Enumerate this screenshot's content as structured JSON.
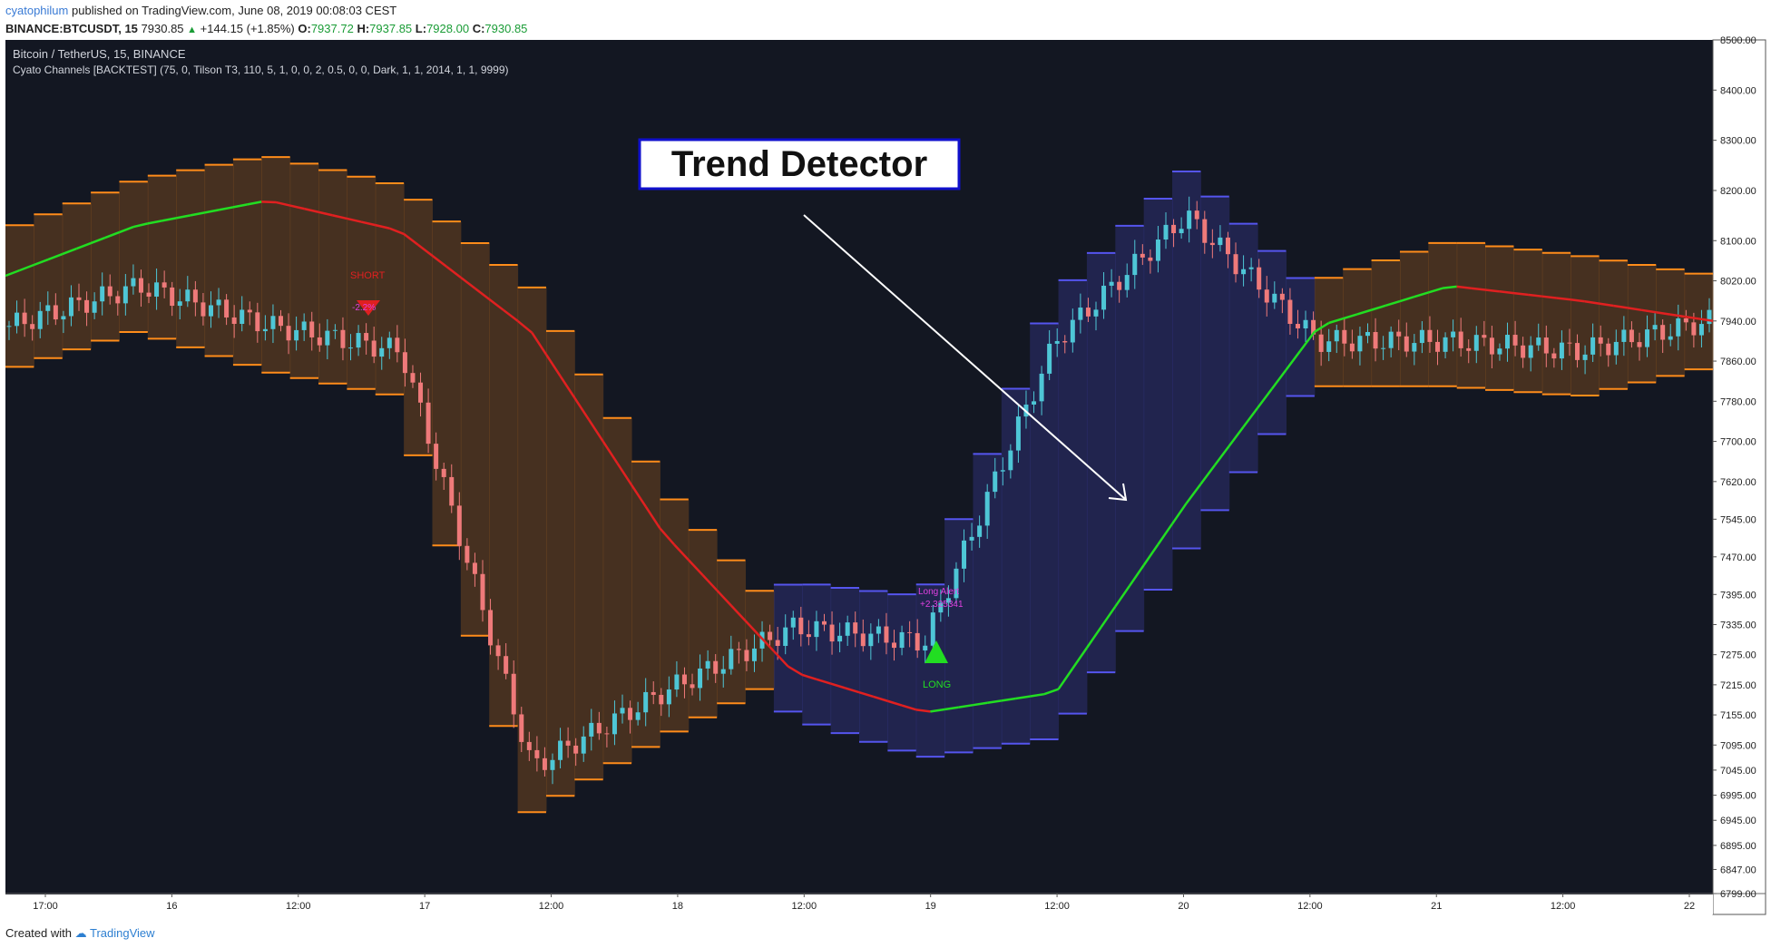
{
  "header": {
    "username": "cyatophilum",
    "published_text": "published on TradingView.com, June 08, 2019 00:08:03 CEST",
    "symbol": "BINANCE:BTCUSDT, 15",
    "last_price": "7930.85",
    "change": "+144.15 (+1.85%)",
    "open_label": "O:",
    "open": "7937.72",
    "high_label": "H:",
    "high": "7937.85",
    "low_label": "L:",
    "low": "7928.00",
    "close_label": "C:",
    "close": "7930.85"
  },
  "chart_data": {
    "type": "line",
    "pair_title": "Bitcoin / TetherUS, 15, BINANCE",
    "indicator_label": "Cyato Channels [BACKTEST] (75, 0, Tilson T3, 110, 5, 1, 0, 0, 2, 0.5, 0, 0, Dark, 1, 1, 2014, 1, 1, 9999)",
    "annotation_title": "Trend Detector",
    "x_tick_labels": [
      "17:00",
      "16",
      "12:00",
      "17",
      "12:00",
      "18",
      "12:00",
      "19",
      "12:00",
      "20",
      "12:00",
      "21",
      "12:00",
      "22"
    ],
    "y_tick_labels": [
      "8500.00",
      "8400.00",
      "8300.00",
      "8200.00",
      "8100.00",
      "8020.00",
      "7940.00",
      "7860.00",
      "7780.00",
      "7700.00",
      "7620.00",
      "7545.00",
      "7470.00",
      "7395.00",
      "7335.00",
      "7275.00",
      "7215.00",
      "7155.00",
      "7095.00",
      "7045.00",
      "6995.00",
      "6945.00",
      "6895.00",
      "6847.00",
      "6799.00"
    ],
    "ylim": [
      6799,
      8500
    ],
    "markers": [
      {
        "label": "SHORT",
        "alert": "-2.2%",
        "price": 7930
      },
      {
        "label": "LONG",
        "alert": "Long Alert",
        "value": "+2.325341",
        "price": 7240
      }
    ],
    "series": [
      {
        "name": "",
        "x": [
          "17:00",
          "16",
          "12:00",
          "17",
          "12:00",
          "18",
          "12:00",
          "19",
          "12:00",
          "20",
          "12:00",
          "21",
          "12:00",
          "22"
        ],
        "values": [
          7930,
          8010,
          7930,
          7880,
          7050,
          7200,
          7330,
          7300,
          7900,
          8150,
          7900,
          7900,
          7880,
          7940
        ]
      },
      {
        "name": "",
        "x": [
          "17:00",
          "16",
          "12:00",
          "17",
          "12:00",
          "18",
          "12:00",
          "19",
          "12:00",
          "20",
          "12:00",
          "21",
          "12:00",
          "22"
        ],
        "values": [
          8030,
          8130,
          8180,
          8120,
          7920,
          7520,
          7240,
          7160,
          7200,
          7580,
          7930,
          8010,
          7980,
          7940
        ]
      }
    ],
    "colors": {
      "background": "#131722",
      "bull_channel": "#5555ee",
      "bear_channel": "#ff8c1a",
      "trend_up": "#22dd22",
      "trend_down": "#e02020",
      "candle_up": "#4ec6d6",
      "candle_down": "#ef7a7a"
    }
  },
  "footer": {
    "created_with": "Created with",
    "brand": "TradingView"
  }
}
